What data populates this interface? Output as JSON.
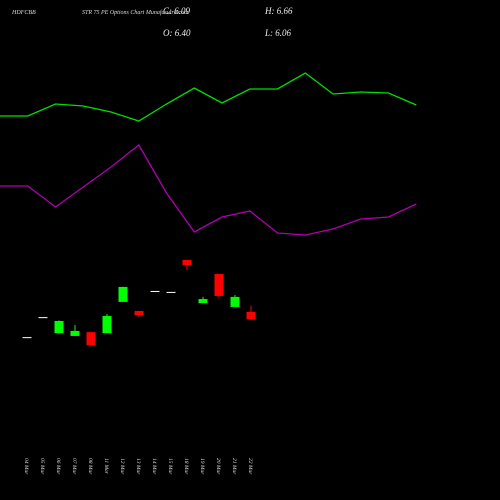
{
  "chart_data": {
    "type": "candlestick",
    "title": "HDFCBB",
    "subtitle": "STR 75 PE Options Chart Munafasutra.com",
    "stats": [
      "C: 6.09",
      "H: 6.66",
      "O: 6.40",
      "L: 6.06"
    ],
    "categories": [
      "04 Mar",
      "05 Mar",
      "06 Mar",
      "07 Mar",
      "08 Mar",
      "11 Mar",
      "12 Mar",
      "13 Mar",
      "14 Mar",
      "15 Mar",
      "18 Mar",
      "19 Mar",
      "20 Mar",
      "21 Mar",
      "22 Mar"
    ],
    "open": [
      5.34,
      6.18,
      5.51,
      5.39,
      5.55,
      5.51,
      6.82,
      6.44,
      7.28,
      7.24,
      8.58,
      6.77,
      7.99,
      6.61,
      6.4
    ],
    "high": [
      5.34,
      6.18,
      6.04,
      5.85,
      5.55,
      6.31,
      7.45,
      6.44,
      7.28,
      7.24,
      8.58,
      7.03,
      7.99,
      7.11,
      6.66
    ],
    "low": [
      5.34,
      6.18,
      5.49,
      5.39,
      5.01,
      5.51,
      6.82,
      6.18,
      7.28,
      7.24,
      8.16,
      6.77,
      6.98,
      6.61,
      6.06
    ],
    "close": [
      5.34,
      6.18,
      6.02,
      5.6,
      5.01,
      6.23,
      7.45,
      6.27,
      7.28,
      7.24,
      8.37,
      6.94,
      7.07,
      7.03,
      6.09
    ],
    "ylim": [
      4.8,
      9.0
    ],
    "up_color": "#00ff00",
    "down_color": "#ff0000",
    "flat_color": "#ffffff",
    "overlay": {
      "ylim": [
        0,
        500
      ],
      "series": [
        {
          "color": "#00e000",
          "values": [
            384,
            384,
            396,
            394,
            388,
            379,
            396,
            412,
            397,
            411,
            411,
            427,
            406,
            408,
            407,
            395
          ]
        },
        {
          "color": "#b000b0",
          "values": [
            314,
            314,
            293,
            313,
            333,
            355,
            307,
            268,
            283,
            289,
            267,
            265,
            271,
            281,
            283,
            296
          ]
        }
      ]
    }
  }
}
